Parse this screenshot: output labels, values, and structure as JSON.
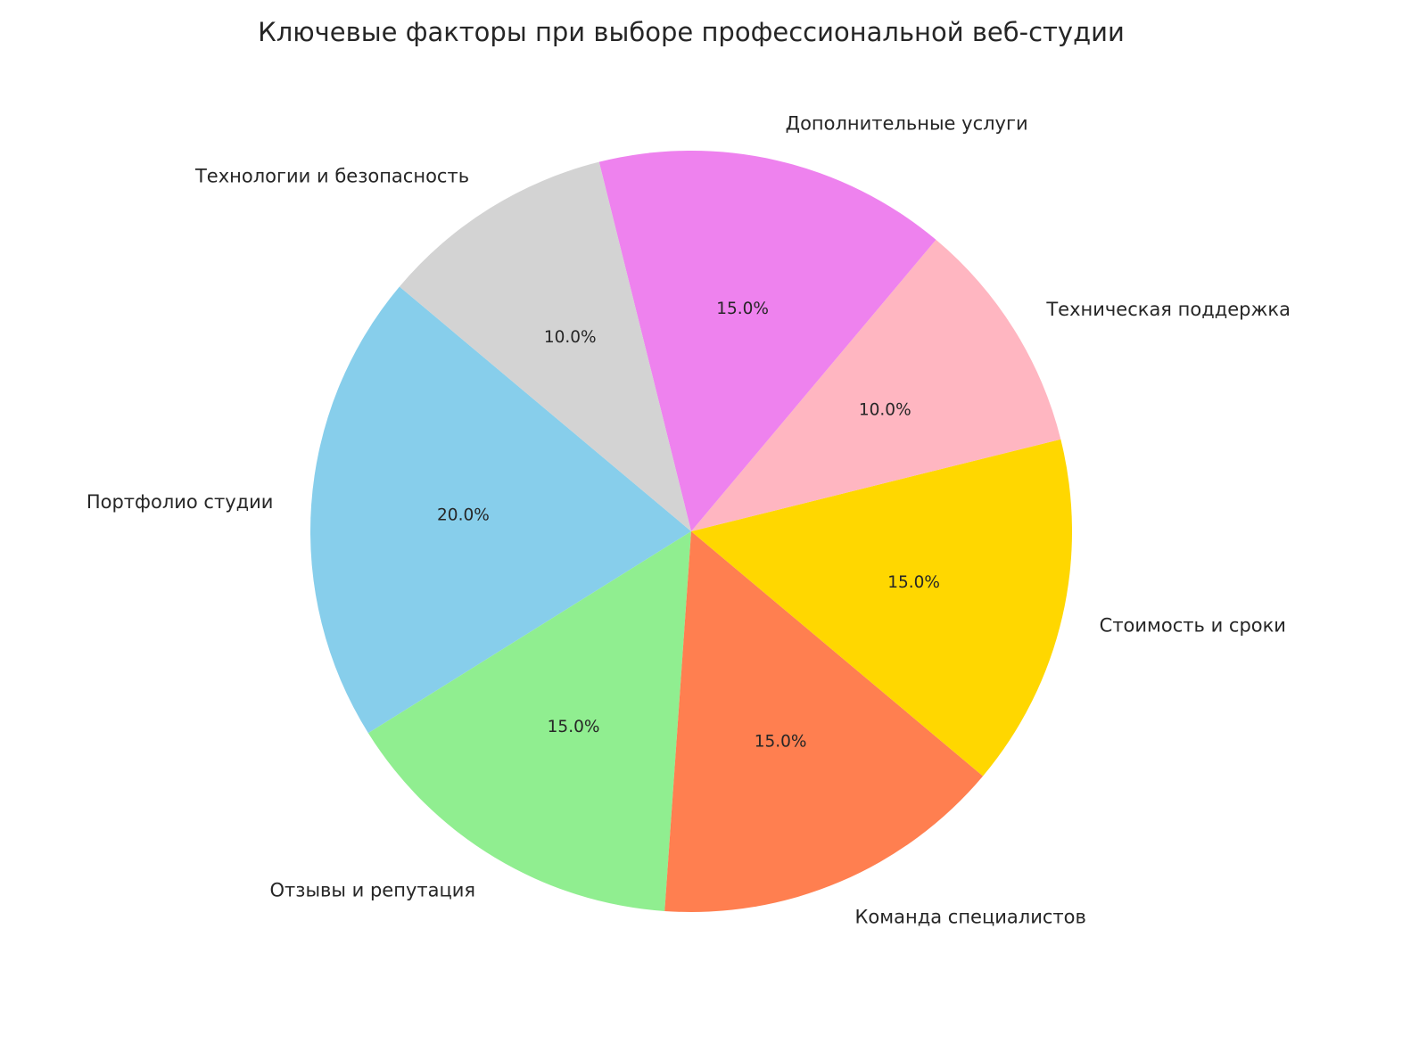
{
  "chart_data": {
    "type": "pie",
    "title": "Ключевые факторы при выборе профессиональной веб-студии",
    "start_angle_deg": 140,
    "direction": "counterclockwise",
    "slices": [
      {
        "label": "Портфолио студии",
        "value": 20,
        "pct_label": "20.0%",
        "color": "#87CEEB"
      },
      {
        "label": "Отзывы и репутация",
        "value": 15,
        "pct_label": "15.0%",
        "color": "#90EE90"
      },
      {
        "label": "Команда специалистов",
        "value": 15,
        "pct_label": "15.0%",
        "color": "#FF7F50"
      },
      {
        "label": "Стоимость и сроки",
        "value": 15,
        "pct_label": "15.0%",
        "color": "#FFD700"
      },
      {
        "label": "Техническая поддержка",
        "value": 10,
        "pct_label": "10.0%",
        "color": "#FFB6C1"
      },
      {
        "label": "Дополнительные услуги",
        "value": 15,
        "pct_label": "15.0%",
        "color": "#EE82EE"
      },
      {
        "label": "Технологии и безопасность",
        "value": 10,
        "pct_label": "10.0%",
        "color": "#D3D3D3"
      }
    ]
  }
}
